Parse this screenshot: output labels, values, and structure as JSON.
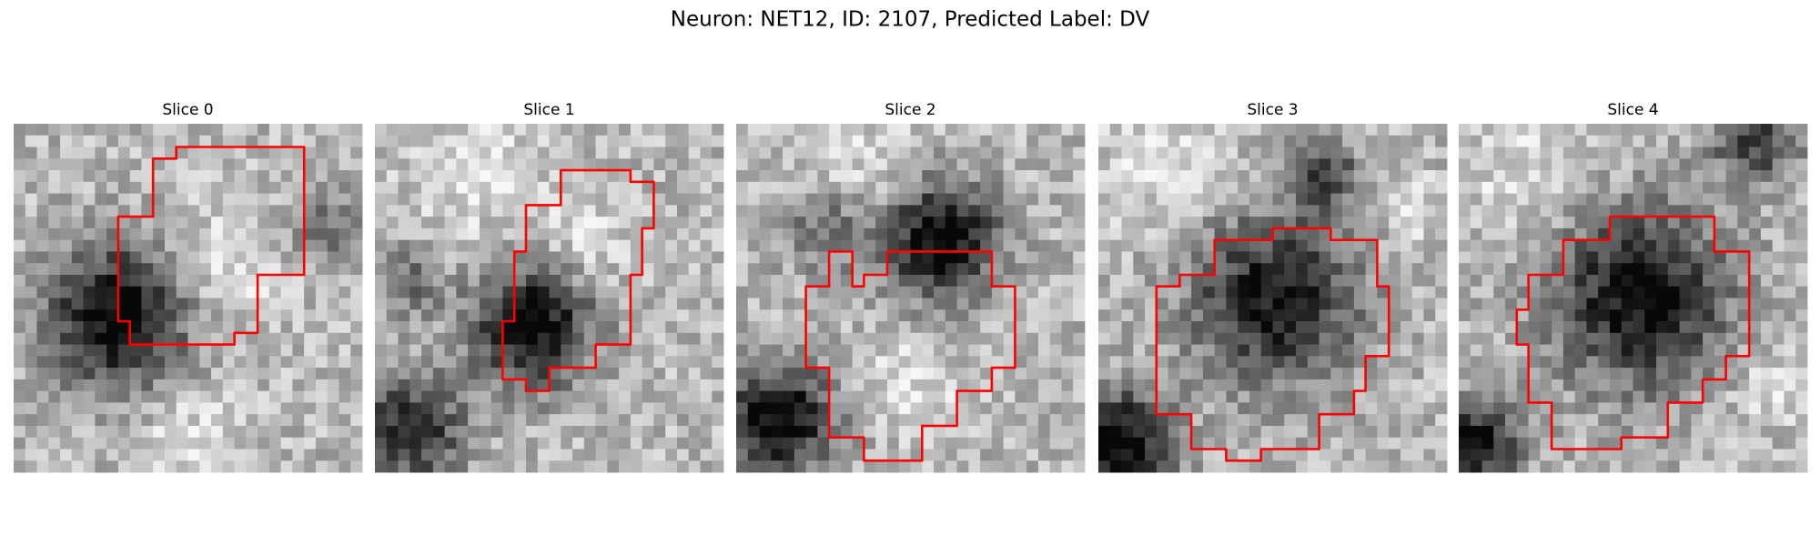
{
  "title": "Neuron: NET12, ID: 2107, Predicted Label: DV",
  "panels": [
    {
      "title": "Slice 0"
    },
    {
      "title": "Slice 1"
    },
    {
      "title": "Slice 2"
    },
    {
      "title": "Slice 3"
    },
    {
      "title": "Slice 4"
    }
  ]
}
